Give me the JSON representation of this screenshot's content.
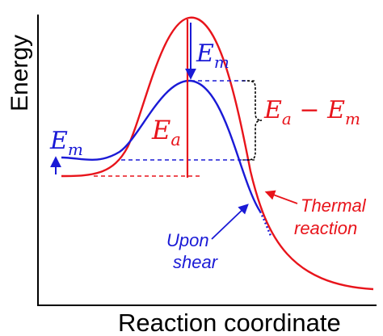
{
  "figure": {
    "y_axis_label": "Energy",
    "x_axis_label": "Reaction coordinate",
    "labels": {
      "em_main": "E",
      "em_main_sub": "m",
      "ea": "E",
      "ea_sub": "a",
      "em_left": "E",
      "em_left_sub": "m",
      "diff_e1": "E",
      "diff_e1_sub": "a",
      "diff_minus": " − ",
      "diff_e2": "E",
      "diff_e2_sub": "m",
      "upon_shear_line1": "Upon",
      "upon_shear_line2": "shear",
      "thermal_line1": "Thermal",
      "thermal_line2": "reaction"
    },
    "colors": {
      "red": "#e8141b",
      "blue": "#1a1ad6",
      "black": "#000000"
    }
  }
}
